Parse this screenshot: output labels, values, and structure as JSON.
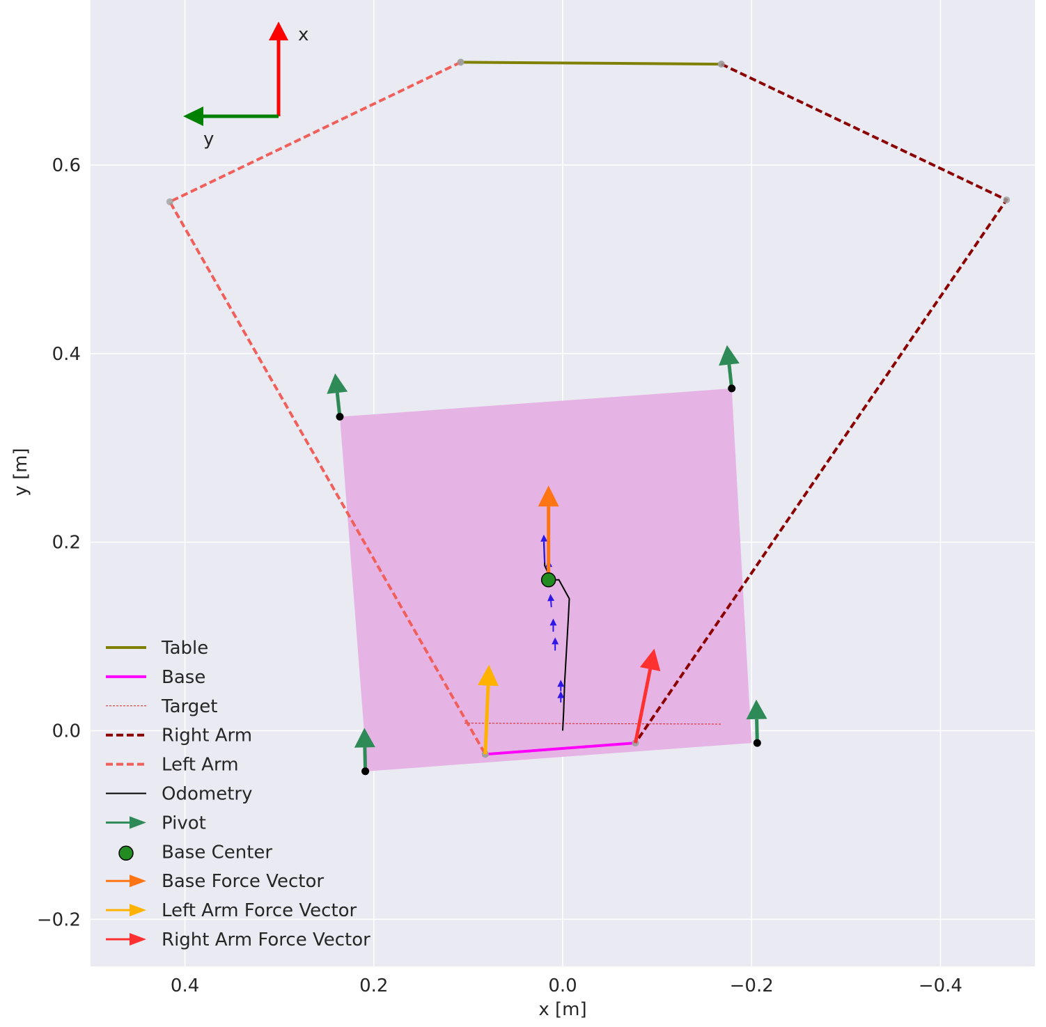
{
  "chart_data": {
    "type": "line",
    "xlabel": "x [m]",
    "ylabel": "y [m]",
    "x_axis_inverted": true,
    "xlim": [
      0.5,
      -0.5
    ],
    "ylim": [
      -0.25,
      0.775
    ],
    "xticks": [
      0.4,
      0.2,
      0.0,
      -0.2,
      -0.4
    ],
    "xtick_labels": [
      "0.4",
      "0.2",
      "0.0",
      "−0.2",
      "−0.4"
    ],
    "yticks": [
      0.6,
      0.4,
      0.2,
      0.0,
      -0.2
    ],
    "ytick_labels": [
      "0.6",
      "0.4",
      "0.2",
      "0.0",
      "−0.2"
    ],
    "grid": true,
    "legend_position": "lower-left",
    "frame_axes": {
      "x_label": "x",
      "y_label": "y"
    },
    "series": [
      {
        "name": "Table",
        "style": "solid",
        "color": "#808000",
        "points": [
          [
            0.108,
            0.709
          ],
          [
            -0.168,
            0.707
          ]
        ]
      },
      {
        "name": "Base",
        "style": "solid",
        "color": "#ff00ff",
        "points": [
          [
            0.082,
            -0.025
          ],
          [
            -0.077,
            -0.013
          ]
        ]
      },
      {
        "name": "Target",
        "style": "dashed-thin",
        "color": "#e31a1c",
        "points": [
          [
            0.104,
            0.008
          ],
          [
            -0.168,
            0.007
          ]
        ]
      },
      {
        "name": "Right Arm",
        "style": "dashed",
        "color": "#8b0000",
        "points": [
          [
            -0.168,
            0.707
          ],
          [
            -0.47,
            0.563
          ],
          [
            -0.077,
            -0.013
          ]
        ]
      },
      {
        "name": "Left Arm",
        "style": "dashed",
        "color": "#f15f5a",
        "points": [
          [
            0.108,
            0.709
          ],
          [
            0.416,
            0.561
          ],
          [
            0.082,
            -0.025
          ]
        ]
      },
      {
        "name": "Odometry",
        "style": "solid",
        "color": "#000000",
        "points": [
          [
            0.0,
            0.0
          ],
          [
            -0.001,
            0.02
          ],
          [
            -0.002,
            0.05
          ],
          [
            -0.004,
            0.085
          ],
          [
            -0.006,
            0.12
          ],
          [
            -0.007,
            0.14
          ],
          [
            0.004,
            0.16
          ],
          [
            0.012,
            0.16
          ],
          [
            0.019,
            0.175
          ],
          [
            0.02,
            0.2
          ]
        ]
      }
    ],
    "base_footprint": {
      "color": "#e5b4e5",
      "corners": [
        [
          0.236,
          0.333
        ],
        [
          -0.179,
          0.363
        ],
        [
          -0.2,
          -0.013
        ],
        [
          0.207,
          -0.043
        ]
      ]
    },
    "pivots": {
      "name": "Pivot",
      "color": "#2e8b57",
      "points": [
        {
          "x": 0.236,
          "y": 0.333,
          "dx": 0.005,
          "dy": 0.046
        },
        {
          "x": -0.179,
          "y": 0.363,
          "dx": 0.005,
          "dy": 0.046
        },
        {
          "x": -0.206,
          "y": -0.013,
          "dx": 0.001,
          "dy": 0.046
        },
        {
          "x": 0.209,
          "y": -0.043,
          "dx": 0.001,
          "dy": 0.046
        }
      ]
    },
    "base_center": {
      "name": "Base Center",
      "x": 0.015,
      "y": 0.16,
      "color": "#228b22"
    },
    "odometry_heading_arrows": {
      "color": "#2f17e8",
      "points": [
        {
          "x": 0.019,
          "y": 0.178,
          "dx": 0.001,
          "dy": 0.03
        },
        {
          "x": 0.014,
          "y": 0.161,
          "dx": 0.001,
          "dy": 0.02
        },
        {
          "x": 0.012,
          "y": 0.131,
          "dx": 0.001,
          "dy": 0.014
        },
        {
          "x": 0.01,
          "y": 0.105,
          "dx": 0.0,
          "dy": 0.014
        },
        {
          "x": 0.008,
          "y": 0.085,
          "dx": 0.0,
          "dy": 0.014
        },
        {
          "x": 0.002,
          "y": 0.042,
          "dx": 0.0,
          "dy": 0.012
        },
        {
          "x": 0.002,
          "y": 0.03,
          "dx": 0.0,
          "dy": 0.012
        }
      ]
    },
    "force_vectors": [
      {
        "name": "Base Force Vector",
        "color": "#ff7514",
        "x": 0.015,
        "y": 0.16,
        "dx": 0.0,
        "dy": 0.1
      },
      {
        "name": "Left Arm Force Vector",
        "color": "#ffb300",
        "x": 0.082,
        "y": -0.025,
        "dx": -0.004,
        "dy": 0.095
      },
      {
        "name": "Right Arm Force Vector",
        "color": "#ff3030",
        "x": -0.077,
        "y": -0.013,
        "dx": -0.02,
        "dy": 0.1
      }
    ],
    "legend": [
      {
        "label": "Table",
        "kind": "line",
        "color": "#808000",
        "dash": "",
        "width": 4
      },
      {
        "label": "Base",
        "kind": "line",
        "color": "#ff00ff",
        "dash": "",
        "width": 4
      },
      {
        "label": "Target",
        "kind": "line",
        "color": "#e31a1c",
        "dash": "3,2",
        "width": 1
      },
      {
        "label": "Right Arm",
        "kind": "line",
        "color": "#8b0000",
        "dash": "10,5",
        "width": 4
      },
      {
        "label": "Left Arm",
        "kind": "line",
        "color": "#f15f5a",
        "dash": "10,5",
        "width": 4
      },
      {
        "label": "Odometry",
        "kind": "line",
        "color": "#000000",
        "dash": "",
        "width": 2
      },
      {
        "label": "Pivot",
        "kind": "arrow",
        "color": "#2e8b57"
      },
      {
        "label": "Base Center",
        "kind": "marker",
        "color": "#228b22"
      },
      {
        "label": "Base Force Vector",
        "kind": "arrow",
        "color": "#ff7514"
      },
      {
        "label": "Left Arm Force Vector",
        "kind": "arrow",
        "color": "#ffb300"
      },
      {
        "label": "Right Arm Force Vector",
        "kind": "arrow",
        "color": "#ff3030"
      }
    ]
  }
}
